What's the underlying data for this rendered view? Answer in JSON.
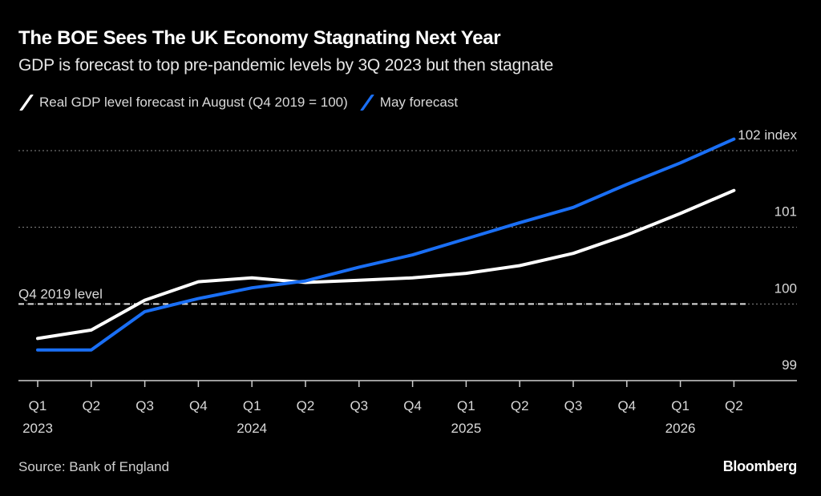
{
  "header": {
    "title": "The BOE Sees The UK Economy Stagnating Next Year",
    "subtitle": "GDP is forecast to top pre-pandemic levels by 3Q 2023 but then stagnate"
  },
  "footer": {
    "source": "Source: Bank of England",
    "brand": "Bloomberg"
  },
  "colors": {
    "background": "#000000",
    "august": "#ffffff",
    "may": "#1a6ff5",
    "grid": "#8a8a8a"
  },
  "chart_data": {
    "type": "line",
    "title": "The BOE Sees The UK Economy Stagnating Next Year",
    "subtitle": "GDP is forecast to top pre-pandemic levels by 3Q 2023 but then stagnate",
    "xlabel": "",
    "ylabel": "",
    "y_unit_label": "index",
    "ylim": [
      99,
      102
    ],
    "yticks": [
      99,
      100,
      101,
      102
    ],
    "ytick_labels": [
      "99",
      "100",
      "101",
      "102"
    ],
    "grid": true,
    "legend_placement": "top-left",
    "categories": [
      "Q1 2023",
      "Q2 2023",
      "Q3 2023",
      "Q4 2023",
      "Q1 2024",
      "Q2 2024",
      "Q3 2024",
      "Q4 2024",
      "Q1 2025",
      "Q2 2025",
      "Q3 2025",
      "Q4 2025",
      "Q1 2026",
      "Q2 2026"
    ],
    "x_tick_labels": [
      "Q1",
      "Q2",
      "Q3",
      "Q4",
      "Q1",
      "Q2",
      "Q3",
      "Q4",
      "Q1",
      "Q2",
      "Q3",
      "Q4",
      "Q1",
      "Q2"
    ],
    "x_year_labels": [
      {
        "index": 0,
        "label": "2023"
      },
      {
        "index": 4,
        "label": "2024"
      },
      {
        "index": 8,
        "label": "2025"
      },
      {
        "index": 12,
        "label": "2026"
      }
    ],
    "series": [
      {
        "name": "Real GDP level forecast in August (Q4 2019 = 100)",
        "color": "#ffffff",
        "values": [
          99.55,
          99.66,
          100.05,
          100.29,
          100.34,
          100.28,
          100.31,
          100.34,
          100.4,
          100.5,
          100.66,
          100.9,
          101.18,
          101.48
        ]
      },
      {
        "name": "May forecast",
        "color": "#1a6ff5",
        "values": [
          99.4,
          99.4,
          99.9,
          100.07,
          100.21,
          100.3,
          100.48,
          100.64,
          100.85,
          101.06,
          101.26,
          101.56,
          101.84,
          102.15
        ]
      }
    ],
    "annotations": [
      {
        "type": "reference-line",
        "value": 100,
        "label": "Q4 2019 level",
        "style": "dashed"
      }
    ]
  }
}
